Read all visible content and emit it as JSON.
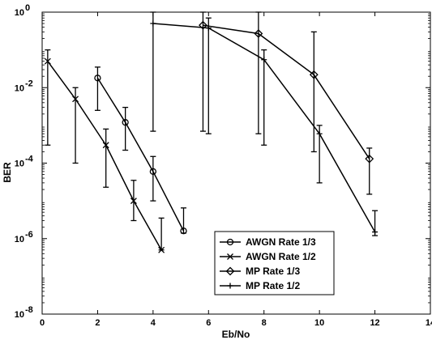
{
  "chart_data": {
    "type": "line",
    "title": "",
    "xlabel": "Eb/No",
    "ylabel": "BER",
    "xlim": [
      0,
      14
    ],
    "ylim": [
      1e-08,
      1
    ],
    "yscale": "log",
    "grid": false,
    "legend_position": "lower-right",
    "x_ticks": [
      0,
      2,
      4,
      6,
      8,
      10,
      12,
      14
    ],
    "x_tick_labels": [
      "0",
      "2",
      "4",
      "6",
      "8",
      "10",
      "12",
      "14"
    ],
    "y_ticks": [
      1e-08,
      1e-06,
      0.0001,
      0.01,
      1
    ],
    "y_tick_labels": [
      {
        "base": "10",
        "exp": "-8"
      },
      {
        "base": "10",
        "exp": "-6"
      },
      {
        "base": "10",
        "exp": "-4"
      },
      {
        "base": "10",
        "exp": "-2"
      },
      {
        "base": "10",
        "exp": "0"
      }
    ],
    "series": [
      {
        "name": "AWGN Rate 1/3",
        "marker": "circle",
        "points": [
          {
            "x": 2.0,
            "y": 0.018,
            "lo": 0.0025,
            "hi": 0.035
          },
          {
            "x": 3.0,
            "y": 0.0012,
            "lo": 0.00022,
            "hi": 0.003
          },
          {
            "x": 4.0,
            "y": 6e-05,
            "lo": 1e-05,
            "hi": 0.00015
          },
          {
            "x": 5.1,
            "y": 1.6e-06,
            "lo": 1.4e-06,
            "hi": 6.5e-06
          }
        ]
      },
      {
        "name": "AWGN Rate 1/2",
        "marker": "x",
        "points": [
          {
            "x": 0.2,
            "y": 0.05
          },
          {
            "x": 1.2,
            "y": 0.005
          },
          {
            "x": 2.3,
            "y": 0.0003
          },
          {
            "x": 3.3,
            "y": 1e-05
          },
          {
            "x": 4.3,
            "y": 5e-07
          }
        ]
      },
      {
        "name": "MP Rate 1/3",
        "marker": "diamond",
        "points": [
          {
            "x": 5.8,
            "y": 0.45,
            "lo": 0.0007,
            "hi": 1.0
          },
          {
            "x": 7.8,
            "y": 0.27,
            "lo": 0.0006,
            "hi": 1.0
          },
          {
            "x": 9.8,
            "y": 0.022,
            "lo": 0.0002,
            "hi": 0.3
          },
          {
            "x": 11.8,
            "y": 0.00013,
            "lo": 1.5e-05,
            "hi": 0.00025
          }
        ]
      },
      {
        "name": "MP Rate 1/2",
        "marker": "plus",
        "points": [
          {
            "x": 4.0,
            "y": 0.5,
            "lo": 0.0007,
            "hi": 1.0
          },
          {
            "x": 6.0,
            "y": 0.38,
            "lo": 0.0006,
            "hi": 0.7
          },
          {
            "x": 8.0,
            "y": 0.055,
            "lo": 0.0003,
            "hi": 0.1
          },
          {
            "x": 10.0,
            "y": 0.0006,
            "lo": 3e-05,
            "hi": 0.001
          },
          {
            "x": 12.0,
            "y": 1.5e-06,
            "lo": 1.2e-06,
            "hi": 5.5e-06
          }
        ]
      }
    ],
    "error_bars": [
      {
        "x": 0.2,
        "lo": 0.0003,
        "hi": 0.1
      },
      {
        "x": 1.2,
        "lo": 0.0001,
        "hi": 0.01
      },
      {
        "x": 2.3,
        "lo": 2.3e-05,
        "hi": 0.0008
      },
      {
        "x": 3.3,
        "lo": 3e-06,
        "hi": 3.5e-05
      },
      {
        "x": 4.3,
        "lo": 5e-07,
        "hi": 3.5e-06
      }
    ]
  }
}
